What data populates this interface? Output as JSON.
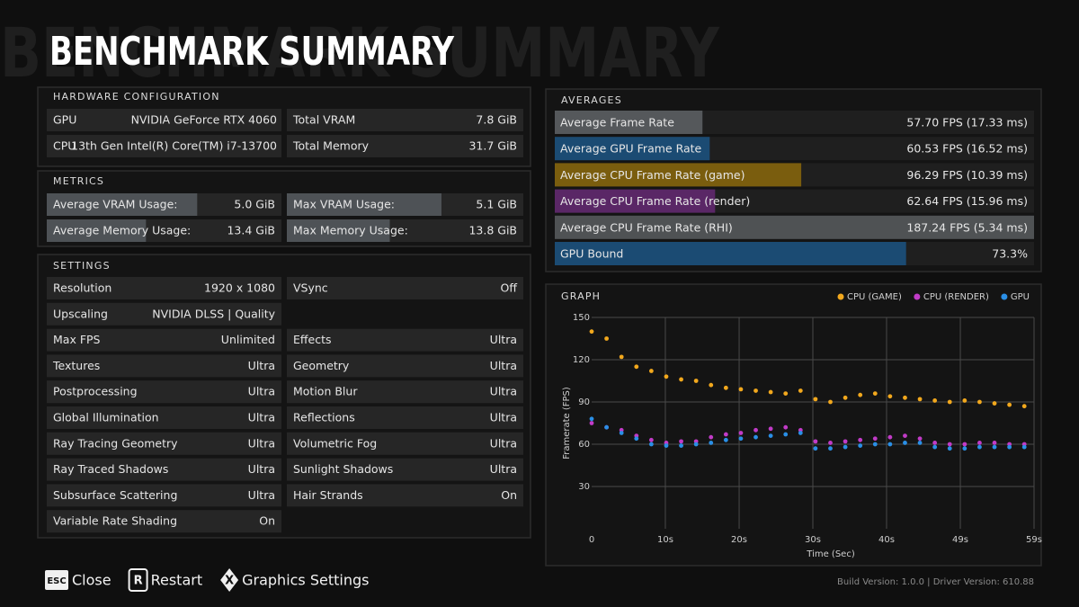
{
  "header": {
    "title": "BENCHMARK SUMMARY"
  },
  "hardware": {
    "title": "HARDWARE CONFIGURATION",
    "gpu_label": "GPU",
    "gpu": "NVIDIA GeForce RTX 4060",
    "cpu_label": "CPU",
    "cpu": "13th Gen Intel(R) Core(TM) i7-13700",
    "vram_label": "Total VRAM",
    "vram": {
      "value": 7.8,
      "label": "7.8 GiB"
    },
    "memory_label": "Total Memory",
    "memory": {
      "value": 31.7,
      "label": "31.7 GiB"
    }
  },
  "metrics": {
    "title": "METRICS",
    "color": "#4e5256",
    "rows": [
      [
        {
          "name": "Average VRAM Usage:",
          "value": 5.0,
          "label": "5.0 GiB"
        },
        {
          "name": "Max VRAM Usage:",
          "value": 5.1,
          "label": "5.1 GiB"
        }
      ],
      [
        {
          "name": "Average Memory Usage:",
          "value": 13.4,
          "label": "13.4 GiB"
        },
        {
          "name": "Max Memory Usage:",
          "value": 13.8,
          "label": "13.8 GiB"
        }
      ]
    ]
  },
  "settings": {
    "title": "SETTINGS",
    "left": [
      {
        "name": "Resolution",
        "value": "1920 x 1080"
      },
      {
        "name": "Upscaling",
        "value": "NVIDIA DLSS | Quality"
      },
      {
        "name": "Max FPS",
        "value": "Unlimited"
      },
      {
        "name": "Textures",
        "value": "Ultra"
      },
      {
        "name": "Postprocessing",
        "value": "Ultra"
      },
      {
        "name": "Global Illumination",
        "value": "Ultra"
      },
      {
        "name": "Ray Tracing Geometry",
        "value": "Ultra"
      },
      {
        "name": "Ray Traced Shadows",
        "value": "Ultra"
      },
      {
        "name": "Subsurface Scattering",
        "value": "Ultra"
      },
      {
        "name": "Variable Rate Shading",
        "value": "On"
      }
    ],
    "right": [
      {
        "name": "VSync",
        "value": "Off"
      },
      {
        "name": "Effects",
        "value": "Ultra"
      },
      {
        "name": "Geometry",
        "value": "Ultra"
      },
      {
        "name": "Motion Blur",
        "value": "Ultra"
      },
      {
        "name": "Reflections",
        "value": "Ultra"
      },
      {
        "name": "Volumetric Fog",
        "value": "Ultra"
      },
      {
        "name": "Sunlight Shadows",
        "value": "Ultra"
      },
      {
        "name": "Hair Strands",
        "value": "On"
      }
    ]
  },
  "averages": {
    "title": "AVERAGES",
    "rows": [
      {
        "name": "Average Frame Rate",
        "value": 57.7,
        "value_label": "57.70 FPS (17.33 ms)",
        "color": "#55585b"
      },
      {
        "name": "Average GPU Frame Rate",
        "value": 60.53,
        "value_label": "60.53 FPS (16.52 ms)",
        "color": "#1b4b73"
      },
      {
        "name": "Average CPU Frame Rate (game)",
        "value": 96.29,
        "value_label": "96.29 FPS (10.39 ms)",
        "color": "#7a5d0e"
      },
      {
        "name": "Average CPU Frame Rate (render)",
        "value": 62.64,
        "value_label": "62.64 FPS (15.96 ms)",
        "color": "#5a2766"
      },
      {
        "name": "Average CPU Frame Rate (RHI)",
        "value": 187.24,
        "value_label": "187.24 FPS (5.34 ms)",
        "color": "#4f5254"
      },
      {
        "name": "GPU Bound",
        "value": 73.3,
        "value_label": "73.3%",
        "color": "#1b4b73"
      }
    ]
  },
  "chart_data": {
    "type": "scatter",
    "title": "GRAPH",
    "x_label": "Time (Sec)",
    "y_label": "Framerate (FPS)",
    "legend": "top-right",
    "grid": true,
    "xlim": [
      0,
      59.3
    ],
    "xticks": [
      0,
      {
        "value": 9.88,
        "label": "10s"
      },
      {
        "value": 19.77,
        "label": "20s"
      },
      {
        "value": 29.65,
        "label": "30s"
      },
      {
        "value": 39.53,
        "label": "40s"
      },
      {
        "value": 49.42,
        "label": "49s"
      },
      {
        "value": 59.3,
        "label": "59s"
      }
    ],
    "ylim": [
      0,
      150
    ],
    "yticks": [
      30,
      60,
      90,
      120,
      150
    ],
    "x": [
      0,
      2,
      4,
      6,
      8,
      10,
      12,
      14,
      16,
      18,
      20,
      22,
      24,
      26,
      28,
      30,
      32,
      34,
      36,
      38,
      40,
      42,
      44,
      46,
      48,
      50,
      52,
      54,
      56,
      58
    ],
    "series": [
      {
        "name": "CPU (GAME)",
        "color": "#f2a81d",
        "values": [
          140,
          135,
          122,
          115,
          112,
          108,
          106,
          105,
          102,
          100,
          99,
          98,
          97,
          96,
          98,
          92,
          90,
          93,
          95,
          96,
          94,
          93,
          92,
          91,
          90,
          91,
          90,
          89,
          88,
          87
        ]
      },
      {
        "name": "CPU (RENDER)",
        "color": "#c13bc7",
        "values": [
          75,
          72,
          70,
          66,
          63,
          61,
          62,
          62,
          65,
          67,
          68,
          70,
          71,
          72,
          70,
          62,
          61,
          62,
          63,
          64,
          65,
          66,
          64,
          61,
          60,
          60,
          61,
          61,
          60,
          60
        ]
      },
      {
        "name": "GPU",
        "color": "#2a8fe6",
        "values": [
          78,
          72,
          68,
          64,
          60,
          59,
          59,
          60,
          61,
          63,
          64,
          65,
          66,
          67,
          68,
          57,
          57,
          58,
          59,
          60,
          60,
          61,
          61,
          58,
          57,
          57,
          58,
          58,
          58,
          58
        ]
      }
    ]
  },
  "footer": {
    "actions": [
      {
        "key": "ESC",
        "label": "Close"
      },
      {
        "key": "R",
        "label": "Restart"
      },
      {
        "key": "X",
        "label": "Graphics Settings"
      }
    ],
    "version": "Build Version: 1.0.0 | Driver Version: 610.88"
  }
}
